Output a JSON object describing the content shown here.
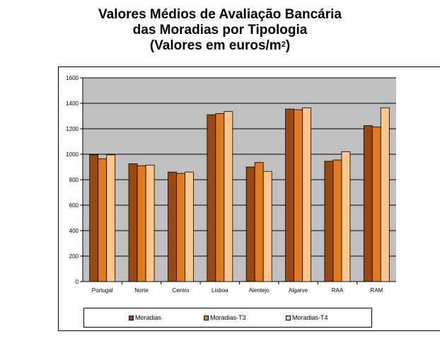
{
  "title": {
    "line1": "Valores Médios de Avaliação Bancária",
    "line2": "das Moradias por Tipologia",
    "line3_prefix": "(Valores em euros/m",
    "line3_sup": "2",
    "line3_suffix": ")"
  },
  "chart_data": {
    "type": "bar",
    "title": "Valores Médios de Avaliação Bancária das Moradias por Tipologia (Valores em euros/m2)",
    "xlabel": "",
    "ylabel": "",
    "categories": [
      "Portugal",
      "Norte",
      "Centro",
      "Lisboa",
      "Alentejo",
      "Algarve",
      "RAA",
      "RAM"
    ],
    "series": [
      {
        "name": "Moradias",
        "color": "#9a4710",
        "values": [
          995,
          925,
          860,
          1310,
          900,
          1355,
          945,
          1225
        ]
      },
      {
        "name": "Moradias-T3",
        "color": "#e07a1a",
        "values": [
          965,
          910,
          850,
          1320,
          935,
          1350,
          955,
          1215
        ]
      },
      {
        "name": "Moradias-T4",
        "color": "#fcc68c",
        "values": [
          995,
          915,
          860,
          1335,
          865,
          1365,
          1020,
          1365
        ]
      }
    ],
    "ylim": [
      0,
      1600
    ],
    "yticks": [
      0,
      200,
      400,
      600,
      800,
      1000,
      1200,
      1400,
      1600
    ],
    "grid": true,
    "plot_background": "#c0c0c0",
    "legend_position": "bottom"
  }
}
